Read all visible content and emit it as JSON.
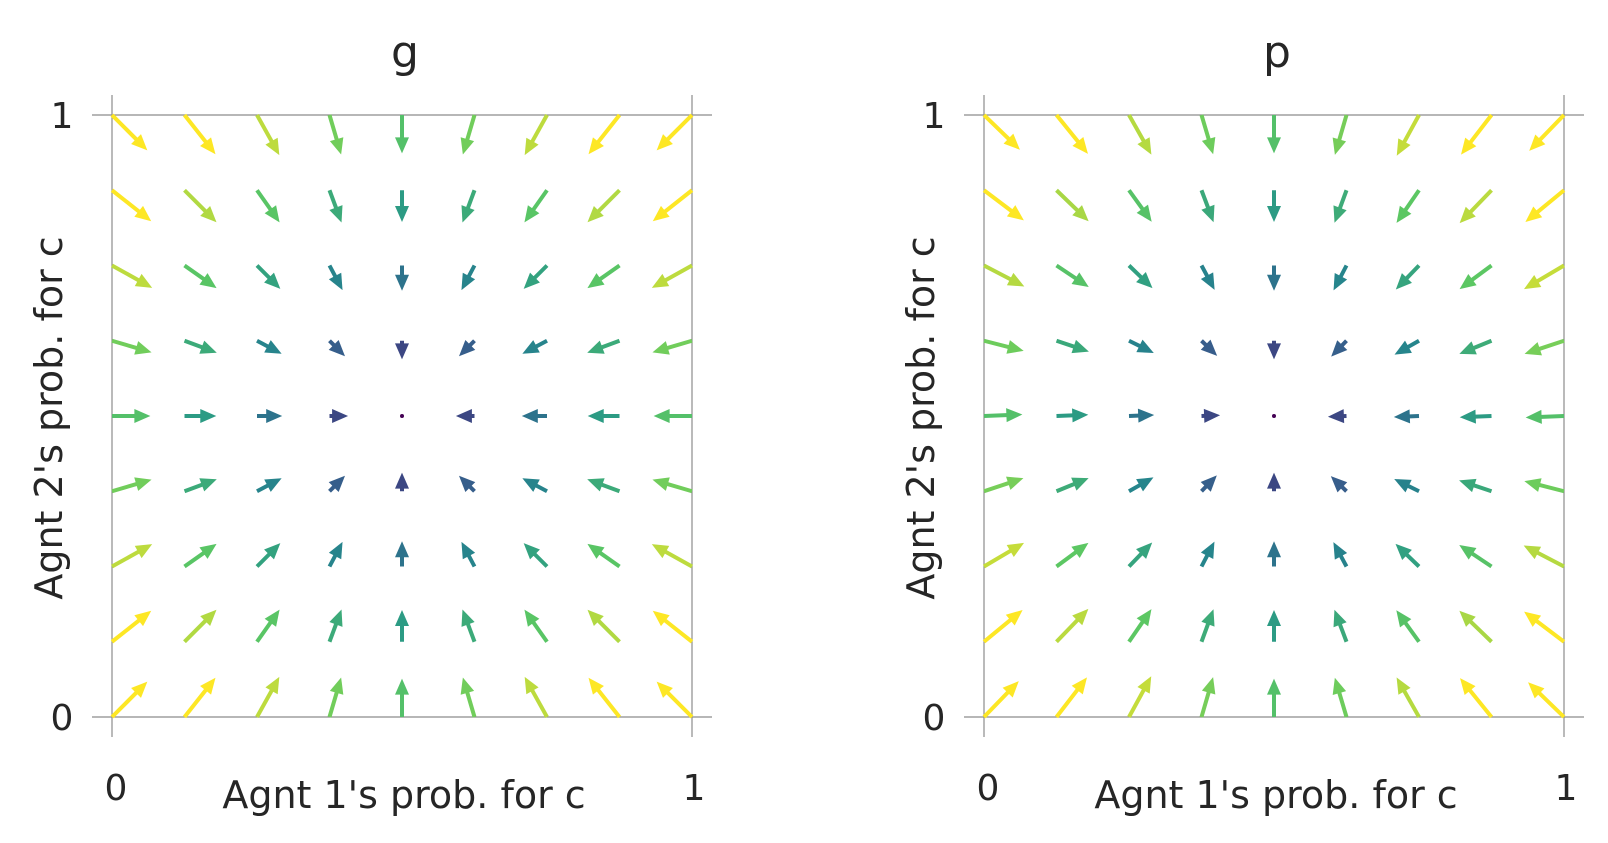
{
  "chart_data": [
    {
      "type": "quiver",
      "title": "g",
      "xlabel": "Agnt 1's prob. for c",
      "ylabel": "Agnt 2's prob. for c",
      "xlim": [
        0,
        1
      ],
      "ylim": [
        0,
        1
      ],
      "xticks": [
        "0",
        "1"
      ],
      "yticks": [
        "0",
        "1"
      ],
      "grid": false,
      "colormap": "viridis",
      "x": [
        0,
        0.125,
        0.25,
        0.375,
        0.5,
        0.625,
        0.75,
        0.875,
        1
      ],
      "y": [
        0,
        0.125,
        0.25,
        0.375,
        0.5,
        0.625,
        0.75,
        0.875,
        1
      ],
      "field": "dx = x(1-x)... symmetric flow toward center (0.5,0.5)"
    },
    {
      "type": "quiver",
      "title": "p",
      "xlabel": "Agnt 1's prob. for c",
      "ylabel": "Agnt 2's prob. for c",
      "xlim": [
        0,
        1
      ],
      "ylim": [
        0,
        1
      ],
      "xticks": [
        "0",
        "1"
      ],
      "yticks": [
        "0",
        "1"
      ],
      "grid": false,
      "colormap": "viridis",
      "x": [
        0,
        0.125,
        0.25,
        0.375,
        0.5,
        0.625,
        0.75,
        0.875,
        1
      ],
      "y": [
        0,
        0.125,
        0.25,
        0.375,
        0.5,
        0.625,
        0.75,
        0.875,
        1
      ],
      "field": "symmetric flow toward center (0.5,0.5)"
    }
  ]
}
